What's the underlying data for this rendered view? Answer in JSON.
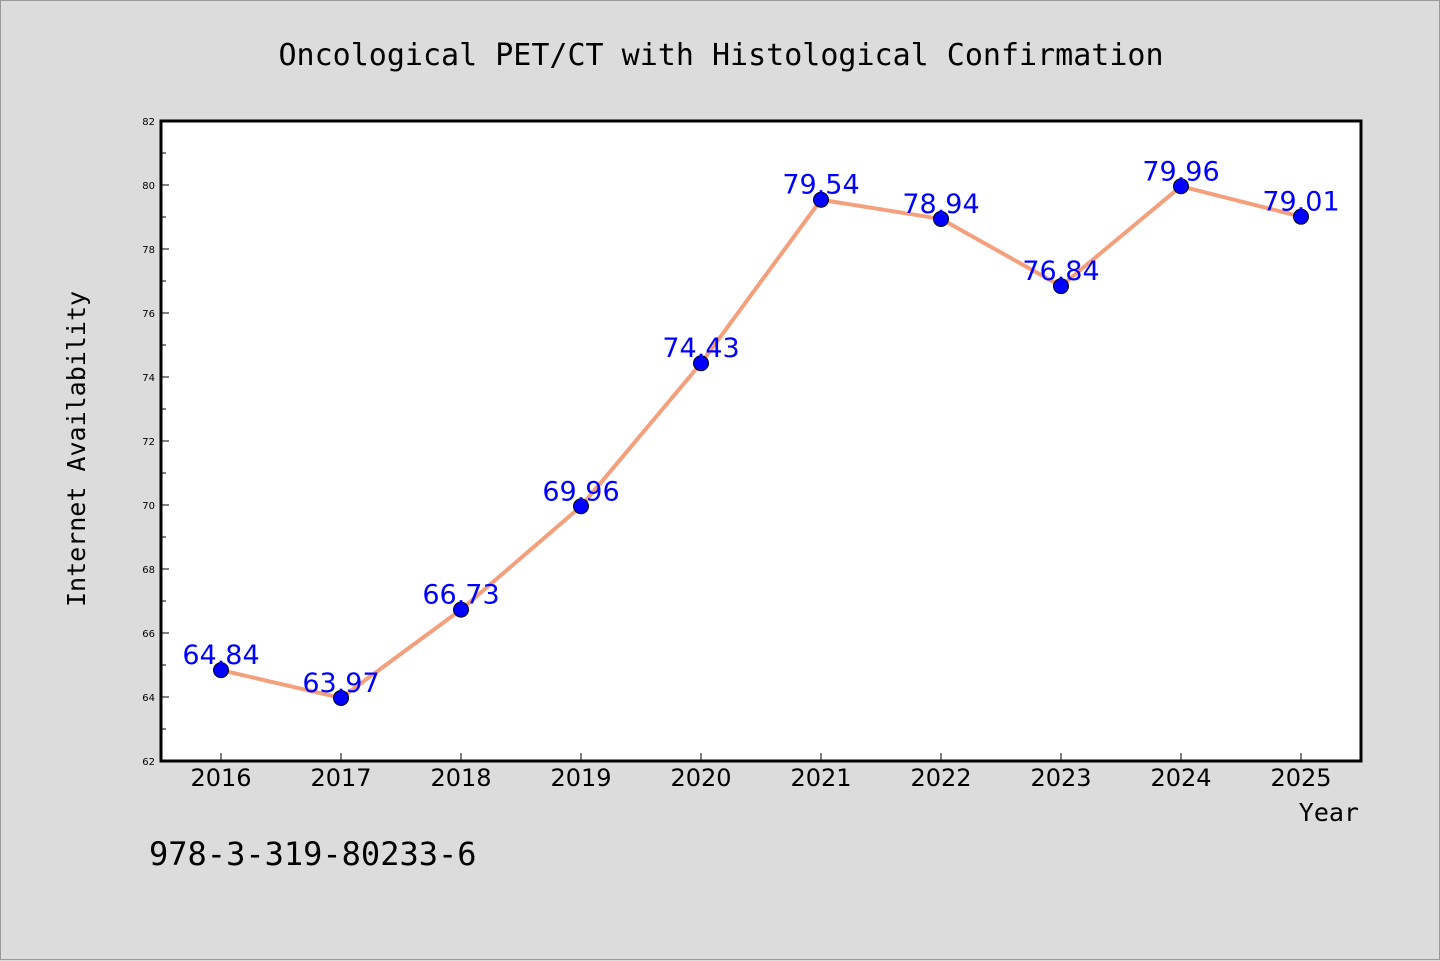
{
  "chart_data": {
    "type": "line",
    "title": "Oncological PET/CT with Histological Confirmation",
    "xlabel": "Year",
    "ylabel": "Internet Availability",
    "categories": [
      "2016",
      "2017",
      "2018",
      "2019",
      "2020",
      "2021",
      "2022",
      "2023",
      "2024",
      "2025"
    ],
    "series": [
      {
        "values": [
          64.84,
          63.97,
          66.73,
          69.96,
          74.43,
          79.54,
          78.94,
          76.84,
          79.96,
          79.01
        ],
        "line_color": "#f4a07c",
        "marker_color": "#0000ff"
      }
    ],
    "data_labels": [
      "64.84",
      "63.97",
      "66.73",
      "69.96",
      "74.43",
      "79.54",
      "78.94",
      "76.84",
      "79.96",
      "79.01"
    ],
    "ylim": [
      62,
      82
    ],
    "yticks": [
      "62",
      "64",
      "66",
      "68",
      "70",
      "72",
      "74",
      "76",
      "78",
      "80",
      "82"
    ],
    "grid": false,
    "label_color": "#0000ff"
  },
  "footer": {
    "text": "978-3-319-80233-6"
  }
}
